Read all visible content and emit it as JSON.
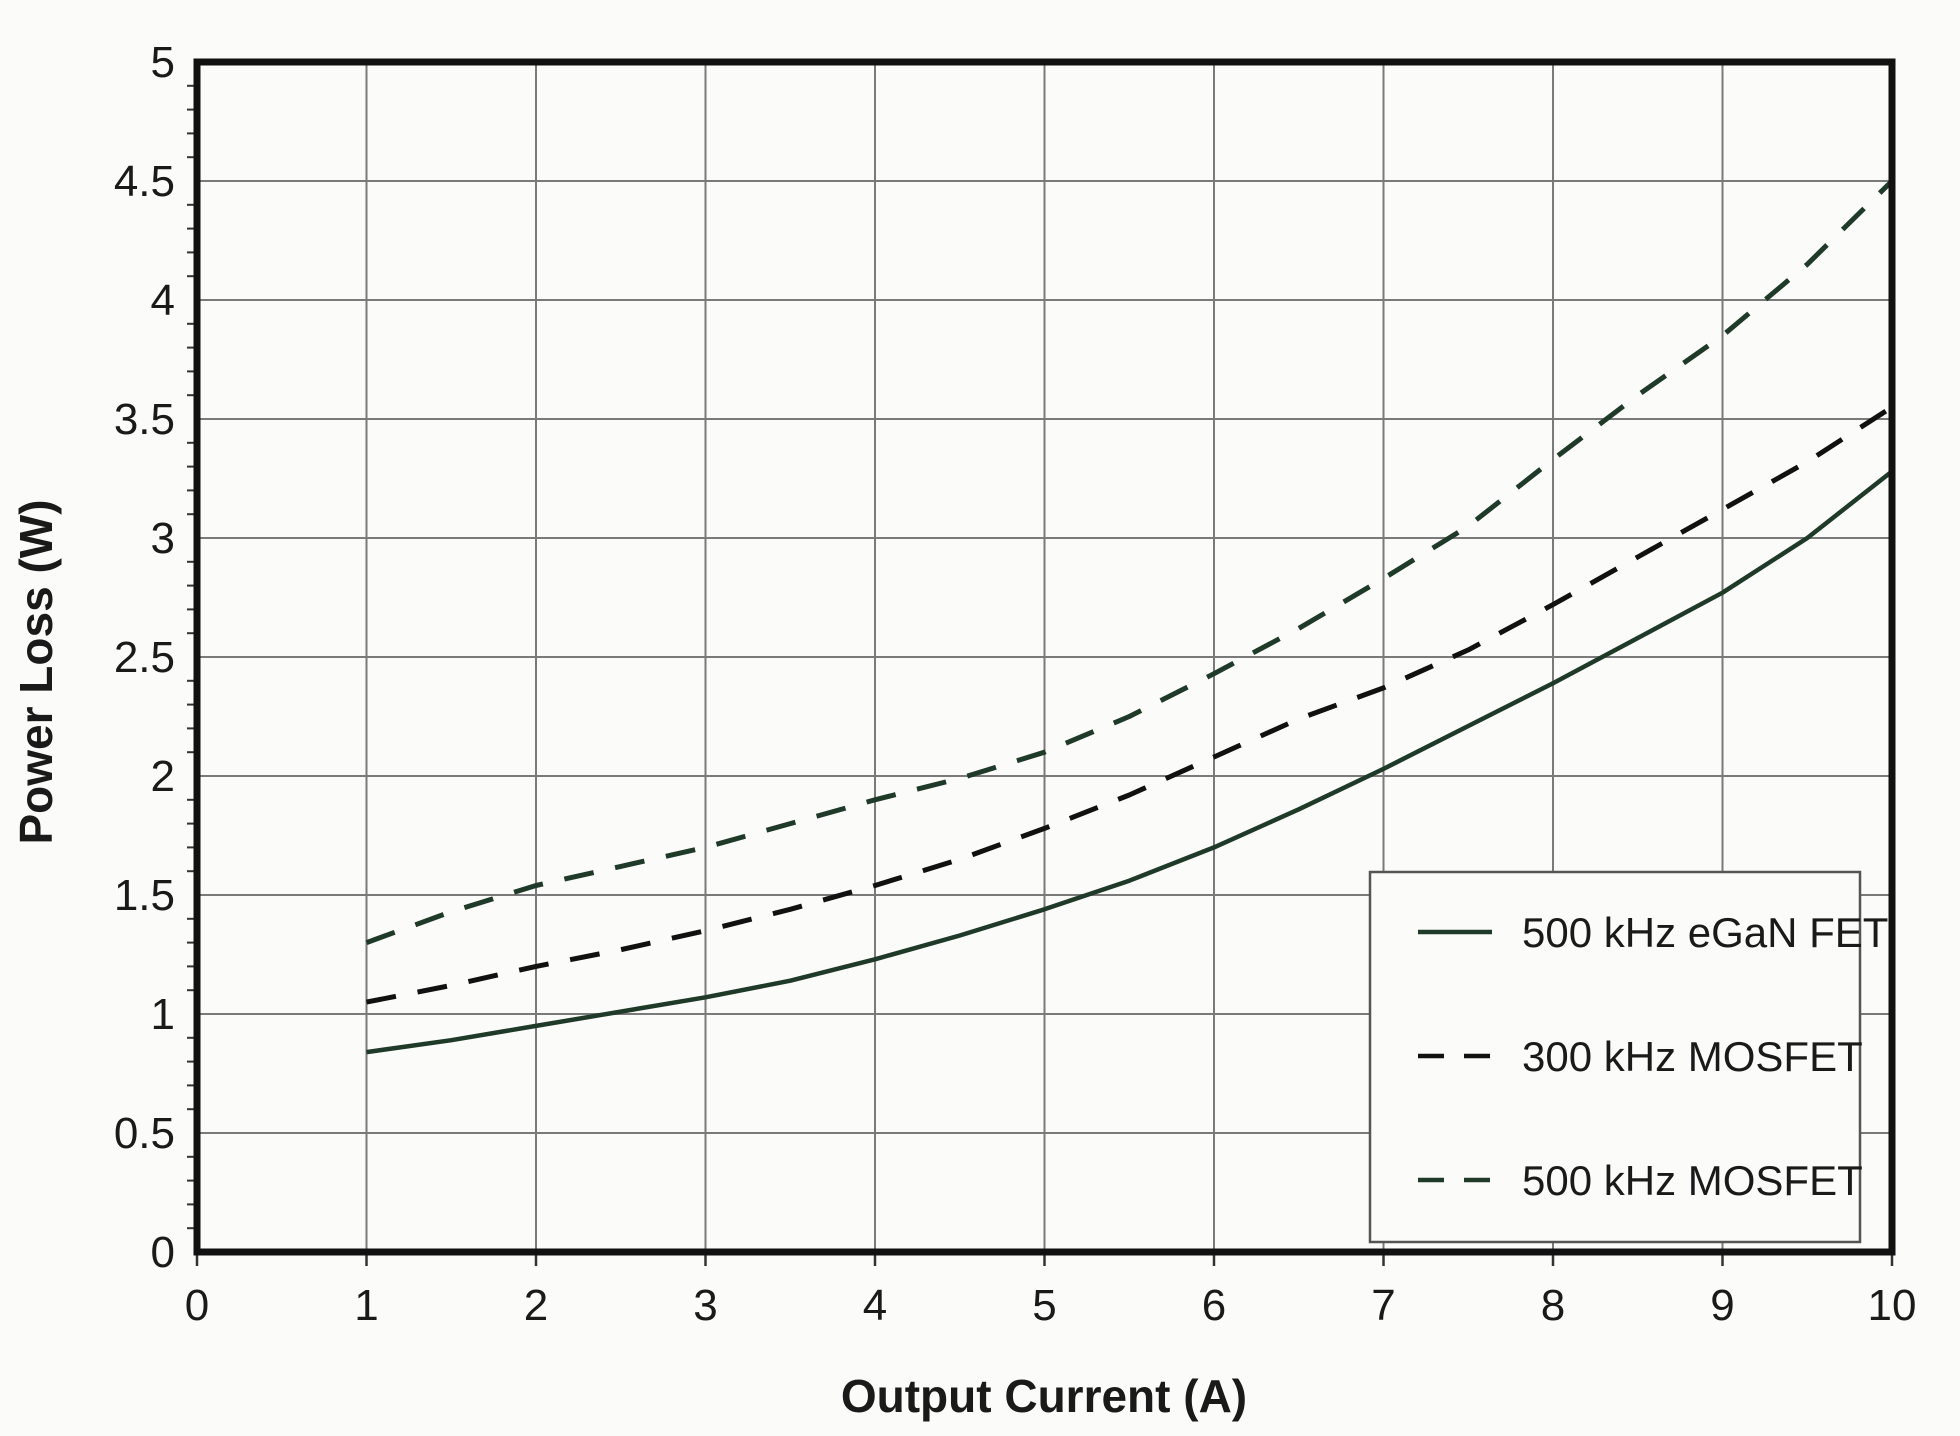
{
  "chart_data": {
    "type": "line",
    "title": "",
    "xlabel": "Output Current (A)",
    "ylabel": "Power Loss (W)",
    "xlim": [
      0,
      10
    ],
    "ylim": [
      0,
      5
    ],
    "xticks": [
      "0",
      "1",
      "2",
      "3",
      "4",
      "5",
      "6",
      "7",
      "8",
      "9",
      "10"
    ],
    "yticks": [
      "0",
      "0.5",
      "1",
      "1.5",
      "2",
      "2.5",
      "3",
      "3.5",
      "4",
      "4.5",
      "5"
    ],
    "grid": true,
    "legend_position": "bottom-right",
    "series": [
      {
        "name": "500 kHz eGaN FET",
        "style": "solid",
        "color": "#1f3a28",
        "x": [
          1,
          1.5,
          2,
          2.5,
          3,
          3.5,
          4,
          4.5,
          5,
          5.5,
          6,
          6.5,
          7,
          7.5,
          8,
          8.5,
          9,
          9.5,
          10
        ],
        "y": [
          0.84,
          0.89,
          0.95,
          1.01,
          1.07,
          1.14,
          1.23,
          1.33,
          1.44,
          1.56,
          1.7,
          1.86,
          2.03,
          2.21,
          2.39,
          2.58,
          2.77,
          3.0,
          3.28
        ]
      },
      {
        "name": "300 kHz MOSFET",
        "style": "dashed",
        "color": "#111111",
        "x": [
          1,
          1.5,
          2,
          2.5,
          3,
          3.5,
          4,
          4.5,
          5,
          5.5,
          6,
          6.5,
          7,
          7.5,
          8,
          8.5,
          9,
          9.5,
          10
        ],
        "y": [
          1.05,
          1.12,
          1.2,
          1.27,
          1.35,
          1.44,
          1.54,
          1.65,
          1.78,
          1.92,
          2.08,
          2.24,
          2.37,
          2.53,
          2.72,
          2.92,
          3.12,
          3.32,
          3.55
        ]
      },
      {
        "name": "500 kHz MOSFET",
        "style": "dashed",
        "color": "#1f3a28",
        "x": [
          1,
          1.5,
          2,
          2.5,
          3,
          3.5,
          4,
          4.5,
          5,
          5.5,
          6,
          6.5,
          7,
          7.5,
          8,
          8.5,
          9,
          9.5,
          10
        ],
        "y": [
          1.3,
          1.43,
          1.54,
          1.62,
          1.7,
          1.8,
          1.9,
          1.99,
          2.1,
          2.25,
          2.43,
          2.62,
          2.83,
          3.05,
          3.33,
          3.6,
          3.85,
          4.15,
          4.5
        ]
      }
    ]
  }
}
